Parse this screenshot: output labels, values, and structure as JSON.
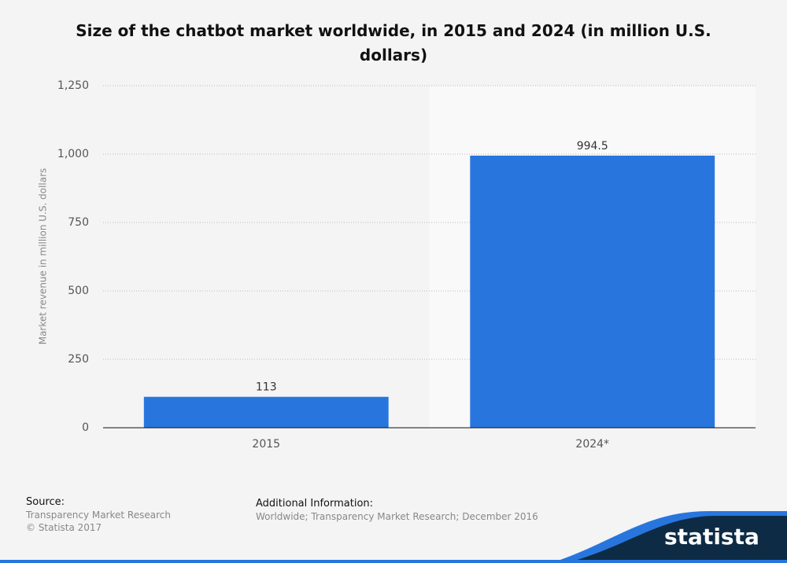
{
  "chart_data": {
    "type": "bar",
    "title": "Size of the chatbot market worldwide, in 2015 and 2024 (in million U.S. dollars)",
    "y_label": "Market revenue in million U.S. dollars",
    "categories": [
      "2015",
      "2024*"
    ],
    "values": [
      113,
      994.5
    ],
    "color": "#2876dd",
    "ylim": [
      0,
      1250
    ],
    "yticks": [
      0,
      250,
      500,
      750,
      {
        "value": 1000,
        "label": "1,000"
      },
      {
        "value": 1250,
        "label": "1,250"
      }
    ],
    "grid": true
  },
  "footer": {
    "source_heading": "Source:",
    "source": "Transparency Market Research",
    "copyright": "© Statista 2017",
    "info_heading": "Additional Information:",
    "info": "Worldwide; Transparency Market Research; December 2016",
    "logo": "statista"
  }
}
